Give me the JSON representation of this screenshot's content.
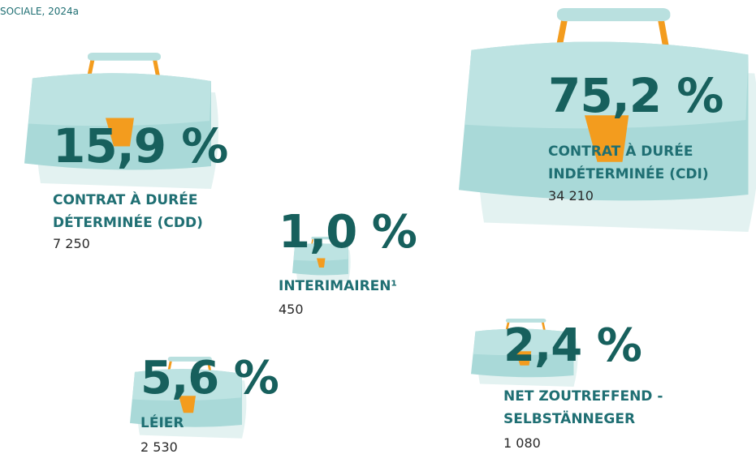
{
  "source": "SOCIALE, 2024a",
  "items": [
    {
      "percent": "15,9 %",
      "label": [
        "CONTRAT À DURÉE",
        "DÉTERMINÉE (CDD)"
      ],
      "count": "7 250"
    },
    {
      "percent": "75,2 %",
      "label": [
        "CONTRAT À DURÉE",
        "INDÉTERMINÉE (CDI)"
      ],
      "count": "34 210"
    },
    {
      "percent": "1,0 %",
      "label": [
        "INTERIMAIREN¹"
      ],
      "count": "450"
    },
    {
      "percent": "5,6 %",
      "label": [
        "LÉIER"
      ],
      "count": "2 530"
    },
    {
      "percent": "2,4 %",
      "label": [
        "NET ZOUTREFFEND -",
        "SELBSTÄNNEGER"
      ],
      "count": "1 080"
    }
  ]
}
